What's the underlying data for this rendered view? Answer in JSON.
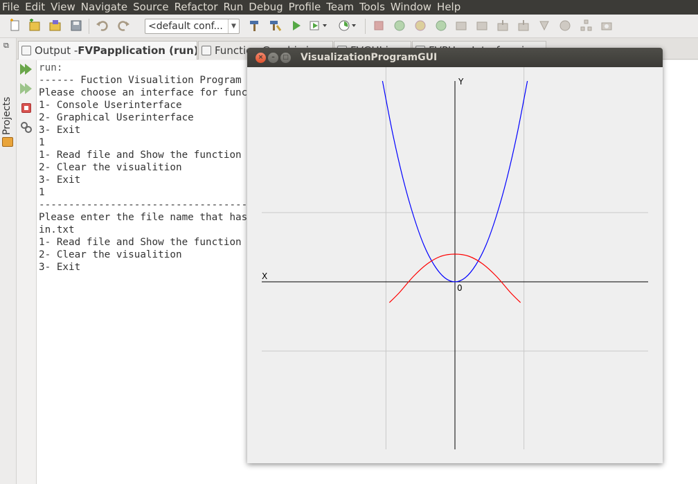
{
  "menubar": {
    "items": [
      "File",
      "Edit",
      "View",
      "Navigate",
      "Source",
      "Refactor",
      "Run",
      "Debug",
      "Profile",
      "Team",
      "Tools",
      "Window",
      "Help"
    ]
  },
  "toolbar": {
    "config_value": "<default conf...",
    "icons": [
      "new-file-icon",
      "new-project-icon",
      "open-project-icon",
      "save-all-icon",
      "undo-icon",
      "redo-icon",
      "clean-build-icon",
      "build-icon",
      "run-icon",
      "debug-icon",
      "profile-icon"
    ]
  },
  "sidebar": {
    "projects_label": "Projects"
  },
  "tabs": [
    {
      "prefix": "Output - ",
      "bold": "FVPapplication (run)",
      "close": "×"
    },
    {
      "prefix": "Function Graphic.java",
      "bold": "",
      "close": "×"
    },
    {
      "prefix": "FVGUI.java",
      "bold": "",
      "close": "×"
    },
    {
      "prefix": "FVPUserInterface.java",
      "bold": "",
      "close": "×"
    }
  ],
  "console": {
    "lines": [
      "run:",
      "------ Fuction Visualition Program ------",
      "Please choose an interface for function visualition",
      "1- Console Userinterface",
      "2- Graphical Userinterface",
      "3- Exit",
      "1",
      "1- Read file and Show the function",
      "2- Clear the visualition",
      "3- Exit",
      "1",
      "------------------------------------------------",
      "Please enter the file name that has the function",
      "in.txt",
      "1- Read file and Show the function",
      "2- Clear the visualition",
      "3- Exit"
    ]
  },
  "gui_window": {
    "title": "VisualizationProgramGUI",
    "close_glyph": "×",
    "min_glyph": "–",
    "max_glyph": "□"
  },
  "chart_data": {
    "type": "line",
    "x_axis_label": "X",
    "y_axis_label": "Y",
    "origin_label": "0",
    "xlim": [
      -2.8,
      2.8
    ],
    "ylim": [
      -2.7,
      2.9
    ],
    "grid": true,
    "series": [
      {
        "color": "#0000ff",
        "x": [
          -1.05,
          -0.9,
          -0.75,
          -0.6,
          -0.45,
          -0.3,
          -0.15,
          0,
          0.15,
          0.3,
          0.45,
          0.6,
          0.75,
          0.9,
          1.05
        ],
        "y": [
          2.9,
          2.13,
          1.48,
          0.95,
          0.53,
          0.24,
          0.06,
          0,
          0.06,
          0.24,
          0.53,
          0.95,
          1.48,
          2.13,
          2.9
        ]
      },
      {
        "color": "#ff0000",
        "x": [
          -0.95,
          -0.8,
          -0.6,
          -0.4,
          -0.2,
          0,
          0.2,
          0.4,
          0.6,
          0.8,
          0.95
        ],
        "y": [
          -0.3,
          -0.15,
          0.08,
          0.26,
          0.37,
          0.4,
          0.37,
          0.26,
          0.08,
          -0.15,
          -0.3
        ]
      }
    ],
    "gridlines": {
      "x": [
        -1,
        1
      ],
      "y": [
        -1,
        1
      ]
    }
  }
}
